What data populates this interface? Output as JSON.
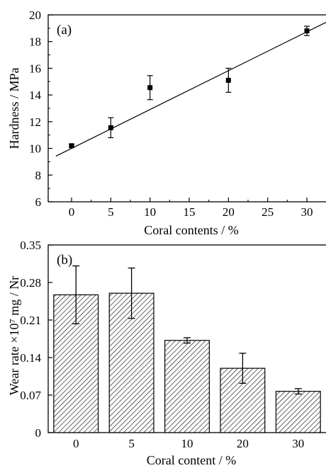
{
  "chart_data": [
    {
      "panel_label": "(a)",
      "type": "scatter",
      "xlabel": "Coral contents / %",
      "ylabel": "Hardness / MPa",
      "xlim": [
        -2,
        32.5
      ],
      "ylim": [
        6,
        20
      ],
      "xticks": [
        0,
        5,
        10,
        15,
        20,
        25,
        30
      ],
      "yticks": [
        6,
        8,
        10,
        12,
        14,
        16,
        18,
        20
      ],
      "points": [
        {
          "x": 0,
          "y": 10.2,
          "err": 0.1
        },
        {
          "x": 5,
          "y": 11.55,
          "err": 0.75
        },
        {
          "x": 10,
          "y": 14.55,
          "err": 0.9
        },
        {
          "x": 20,
          "y": 15.1,
          "err": 0.9
        },
        {
          "x": 30,
          "y": 18.8,
          "err": 0.35
        }
      ],
      "fit_line": {
        "intercept": 10.0,
        "slope": 0.291
      },
      "grid": false
    },
    {
      "panel_label": "(b)",
      "type": "bar",
      "xlabel": "Coral content / %",
      "ylabel": "Wear rate ×10⁷ mg / Nr",
      "categories": [
        "0",
        "5",
        "10",
        "20",
        "30"
      ],
      "values": [
        0.257,
        0.26,
        0.172,
        0.12,
        0.077
      ],
      "errors": [
        0.054,
        0.047,
        0.005,
        0.028,
        0.005
      ],
      "ylim": [
        0,
        0.35
      ],
      "yticks": [
        "0",
        "0.07",
        "0.14",
        "0.21",
        "0.28",
        "0.35"
      ],
      "bar_fill": "diagonal-hatch",
      "grid": false
    }
  ]
}
